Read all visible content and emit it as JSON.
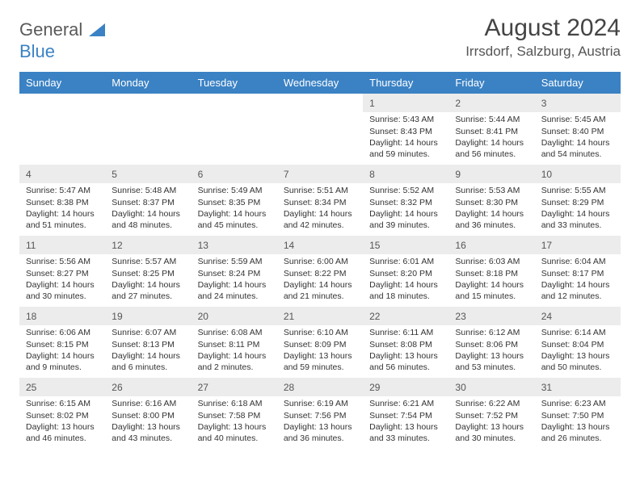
{
  "logo": {
    "word1": "General",
    "word2": "Blue"
  },
  "title": "August 2024",
  "location": "Irrsdorf, Salzburg, Austria",
  "colors": {
    "header_bg": "#3b82c4",
    "header_text": "#ffffff",
    "shaded_row": "#ececec",
    "body_text": "#333333",
    "logo_gray": "#5a5a5a",
    "logo_blue": "#3b82c4"
  },
  "weekdays": [
    "Sunday",
    "Monday",
    "Tuesday",
    "Wednesday",
    "Thursday",
    "Friday",
    "Saturday"
  ],
  "weeks": [
    [
      null,
      null,
      null,
      null,
      {
        "n": "1",
        "sr": "5:43 AM",
        "ss": "8:43 PM",
        "dl": "14 hours and 59 minutes."
      },
      {
        "n": "2",
        "sr": "5:44 AM",
        "ss": "8:41 PM",
        "dl": "14 hours and 56 minutes."
      },
      {
        "n": "3",
        "sr": "5:45 AM",
        "ss": "8:40 PM",
        "dl": "14 hours and 54 minutes."
      }
    ],
    [
      {
        "n": "4",
        "sr": "5:47 AM",
        "ss": "8:38 PM",
        "dl": "14 hours and 51 minutes."
      },
      {
        "n": "5",
        "sr": "5:48 AM",
        "ss": "8:37 PM",
        "dl": "14 hours and 48 minutes."
      },
      {
        "n": "6",
        "sr": "5:49 AM",
        "ss": "8:35 PM",
        "dl": "14 hours and 45 minutes."
      },
      {
        "n": "7",
        "sr": "5:51 AM",
        "ss": "8:34 PM",
        "dl": "14 hours and 42 minutes."
      },
      {
        "n": "8",
        "sr": "5:52 AM",
        "ss": "8:32 PM",
        "dl": "14 hours and 39 minutes."
      },
      {
        "n": "9",
        "sr": "5:53 AM",
        "ss": "8:30 PM",
        "dl": "14 hours and 36 minutes."
      },
      {
        "n": "10",
        "sr": "5:55 AM",
        "ss": "8:29 PM",
        "dl": "14 hours and 33 minutes."
      }
    ],
    [
      {
        "n": "11",
        "sr": "5:56 AM",
        "ss": "8:27 PM",
        "dl": "14 hours and 30 minutes."
      },
      {
        "n": "12",
        "sr": "5:57 AM",
        "ss": "8:25 PM",
        "dl": "14 hours and 27 minutes."
      },
      {
        "n": "13",
        "sr": "5:59 AM",
        "ss": "8:24 PM",
        "dl": "14 hours and 24 minutes."
      },
      {
        "n": "14",
        "sr": "6:00 AM",
        "ss": "8:22 PM",
        "dl": "14 hours and 21 minutes."
      },
      {
        "n": "15",
        "sr": "6:01 AM",
        "ss": "8:20 PM",
        "dl": "14 hours and 18 minutes."
      },
      {
        "n": "16",
        "sr": "6:03 AM",
        "ss": "8:18 PM",
        "dl": "14 hours and 15 minutes."
      },
      {
        "n": "17",
        "sr": "6:04 AM",
        "ss": "8:17 PM",
        "dl": "14 hours and 12 minutes."
      }
    ],
    [
      {
        "n": "18",
        "sr": "6:06 AM",
        "ss": "8:15 PM",
        "dl": "14 hours and 9 minutes."
      },
      {
        "n": "19",
        "sr": "6:07 AM",
        "ss": "8:13 PM",
        "dl": "14 hours and 6 minutes."
      },
      {
        "n": "20",
        "sr": "6:08 AM",
        "ss": "8:11 PM",
        "dl": "14 hours and 2 minutes."
      },
      {
        "n": "21",
        "sr": "6:10 AM",
        "ss": "8:09 PM",
        "dl": "13 hours and 59 minutes."
      },
      {
        "n": "22",
        "sr": "6:11 AM",
        "ss": "8:08 PM",
        "dl": "13 hours and 56 minutes."
      },
      {
        "n": "23",
        "sr": "6:12 AM",
        "ss": "8:06 PM",
        "dl": "13 hours and 53 minutes."
      },
      {
        "n": "24",
        "sr": "6:14 AM",
        "ss": "8:04 PM",
        "dl": "13 hours and 50 minutes."
      }
    ],
    [
      {
        "n": "25",
        "sr": "6:15 AM",
        "ss": "8:02 PM",
        "dl": "13 hours and 46 minutes."
      },
      {
        "n": "26",
        "sr": "6:16 AM",
        "ss": "8:00 PM",
        "dl": "13 hours and 43 minutes."
      },
      {
        "n": "27",
        "sr": "6:18 AM",
        "ss": "7:58 PM",
        "dl": "13 hours and 40 minutes."
      },
      {
        "n": "28",
        "sr": "6:19 AM",
        "ss": "7:56 PM",
        "dl": "13 hours and 36 minutes."
      },
      {
        "n": "29",
        "sr": "6:21 AM",
        "ss": "7:54 PM",
        "dl": "13 hours and 33 minutes."
      },
      {
        "n": "30",
        "sr": "6:22 AM",
        "ss": "7:52 PM",
        "dl": "13 hours and 30 minutes."
      },
      {
        "n": "31",
        "sr": "6:23 AM",
        "ss": "7:50 PM",
        "dl": "13 hours and 26 minutes."
      }
    ]
  ],
  "labels": {
    "sunrise": "Sunrise:",
    "sunset": "Sunset:",
    "daylight": "Daylight:"
  }
}
